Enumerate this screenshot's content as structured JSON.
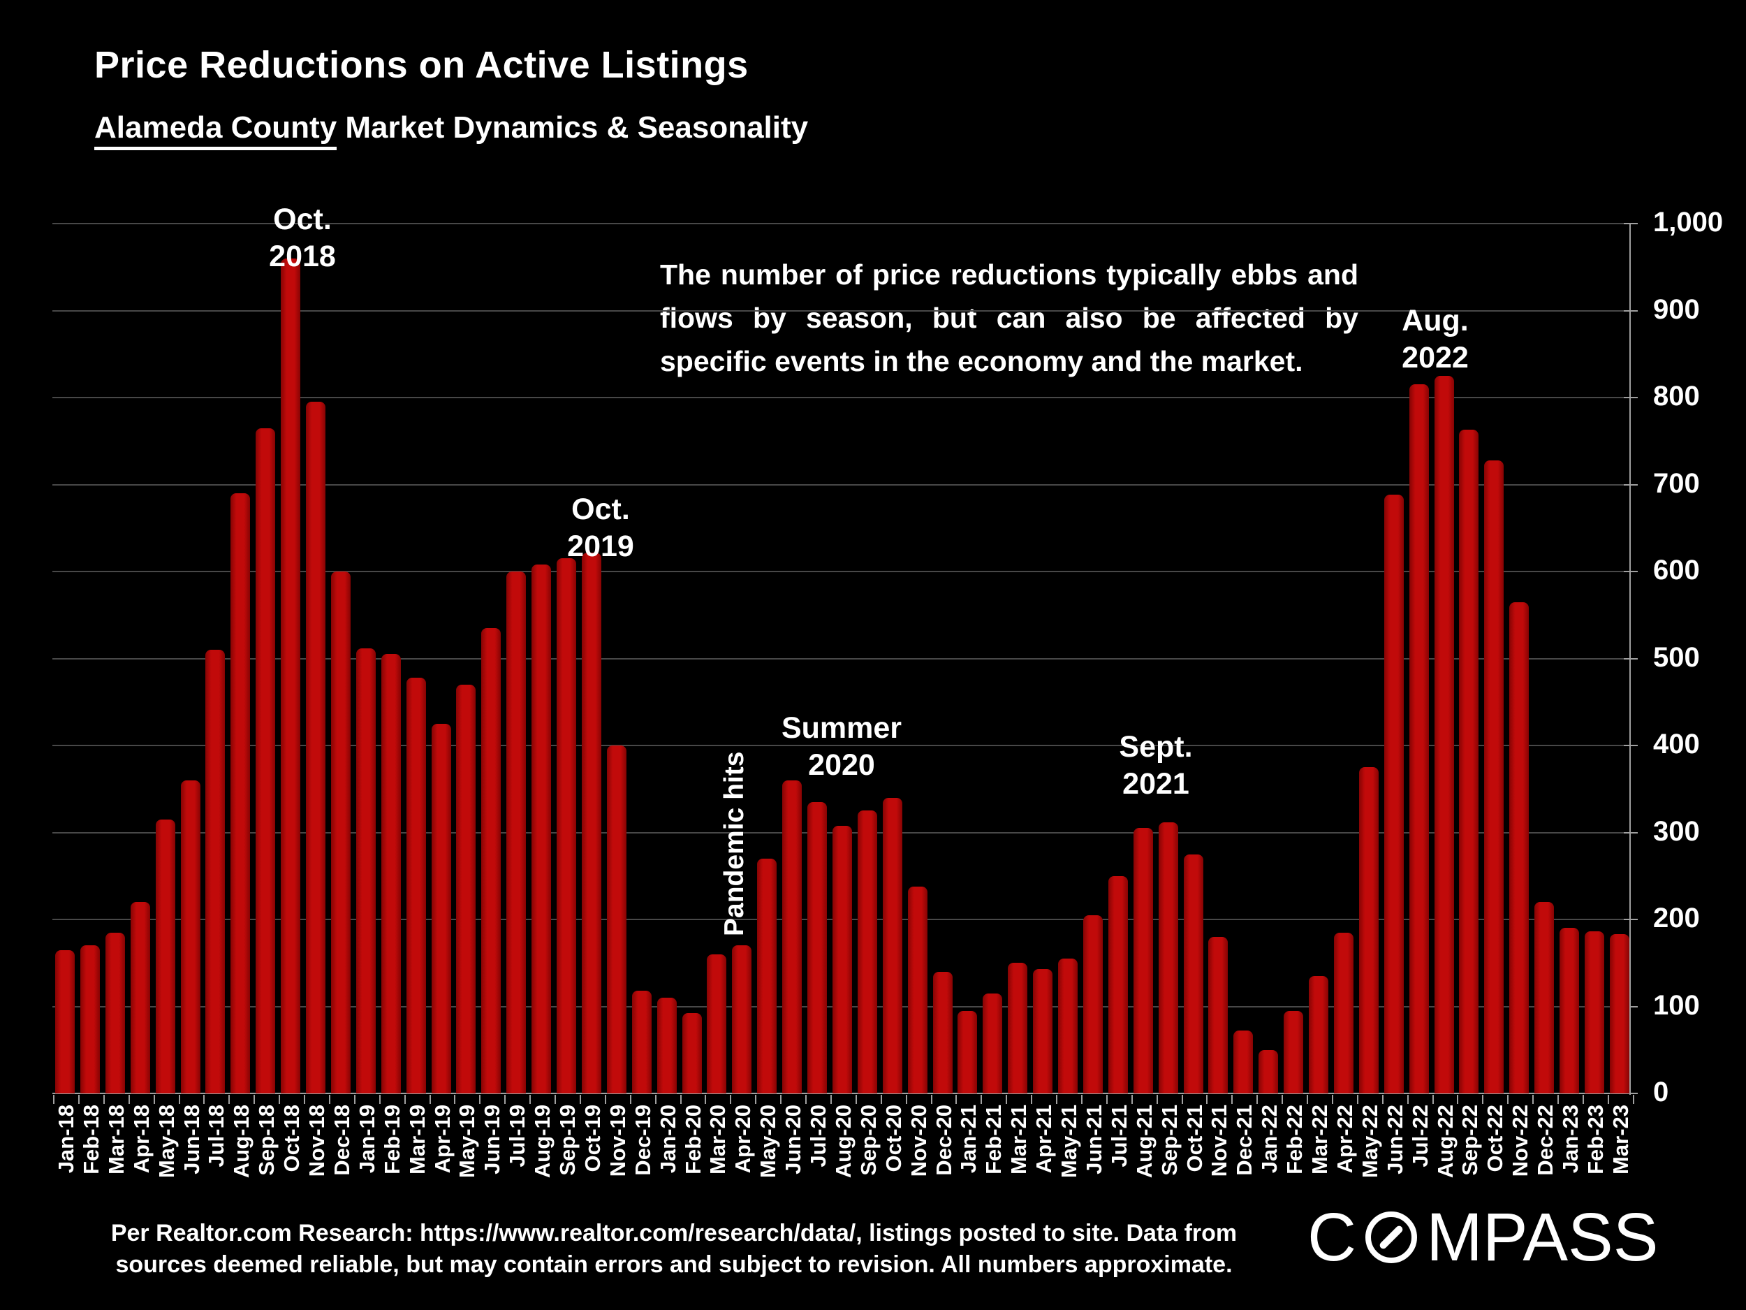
{
  "header": {
    "title": "Price Reductions on Active Listings",
    "subtitle_underlined": "Alameda County",
    "subtitle_rest": " Market Dynamics & Seasonality"
  },
  "annotation": {
    "paragraph": "The number of price reductions typically ebbs and flows by season, but can also be affected by specific events in the economy and the market.",
    "pandemic_label": "Pandemic hits"
  },
  "callouts": {
    "oct2018": "Oct.\n2018",
    "oct2019": "Oct.\n2019",
    "summer2020": "Summer\n2020",
    "sept2021": "Sept.\n2021",
    "aug2022": "Aug.\n2022"
  },
  "footer": {
    "line1": "Per Realtor.com Research:  https://www.realtor.com/research/data/, listings posted to site. Data from",
    "line2": "sources deemed reliable, but may contain errors and subject to revision. All numbers approximate."
  },
  "logo": {
    "part1": "C",
    "part2": "MPASS",
    "o_icon": "compass-needle-o"
  },
  "colors": {
    "background": "#000000",
    "bar_main": "#c10a0a",
    "bar_edge": "#860404",
    "gridline": "#484848",
    "axis": "#a0a0a0",
    "text": "#ffffff"
  },
  "chart_data": {
    "type": "bar",
    "title": "Price Reductions on Active Listings",
    "xlabel": "",
    "ylabel": "",
    "ylim": [
      0,
      1000
    ],
    "grid": true,
    "legend": "none",
    "yaxis_side": "right",
    "ytick_values": [
      0,
      100,
      200,
      300,
      400,
      500,
      600,
      700,
      800,
      900,
      1000
    ],
    "ytick_labels": [
      "0",
      "100",
      "200",
      "300",
      "400",
      "500",
      "600",
      "700",
      "800",
      "900",
      "1,000"
    ],
    "categories": [
      "Jan-18",
      "Feb-18",
      "Mar-18",
      "Apr-18",
      "May-18",
      "Jun-18",
      "Jul-18",
      "Aug-18",
      "Sep-18",
      "Oct-18",
      "Nov-18",
      "Dec-18",
      "Jan-19",
      "Feb-19",
      "Mar-19",
      "Apr-19",
      "May-19",
      "Jun-19",
      "Jul-19",
      "Aug-19",
      "Sep-19",
      "Oct-19",
      "Nov-19",
      "Dec-19",
      "Jan-20",
      "Feb-20",
      "Mar-20",
      "Apr-20",
      "May-20",
      "Jun-20",
      "Jul-20",
      "Aug-20",
      "Sep-20",
      "Oct-20",
      "Nov-20",
      "Dec-20",
      "Jan-21",
      "Feb-21",
      "Mar-21",
      "Apr-21",
      "May-21",
      "Jun-21",
      "Jul-21",
      "Aug-21",
      "Sep-21",
      "Oct-21",
      "Nov-21",
      "Dec-21",
      "Jan-22",
      "Feb-22",
      "Mar-22",
      "Apr-22",
      "May-22",
      "Jun-22",
      "Jul-22",
      "Aug-22",
      "Sep-22",
      "Oct-22",
      "Nov-22",
      "Dec-22",
      "Jan-23",
      "Feb-23",
      "Mar-23"
    ],
    "values": [
      165,
      170,
      185,
      220,
      315,
      360,
      510,
      690,
      765,
      960,
      795,
      600,
      512,
      505,
      478,
      425,
      470,
      535,
      600,
      608,
      615,
      622,
      400,
      118,
      110,
      92,
      160,
      170,
      270,
      360,
      335,
      308,
      325,
      340,
      238,
      140,
      95,
      115,
      150,
      143,
      155,
      205,
      250,
      305,
      312,
      275,
      180,
      72,
      50,
      95,
      135,
      185,
      375,
      688,
      815,
      825,
      763,
      728,
      565,
      220,
      190,
      186,
      183
    ],
    "annotations": [
      {
        "label": "Oct. 2018",
        "category": "Oct-18"
      },
      {
        "label": "Oct. 2019",
        "category": "Oct-19"
      },
      {
        "label": "Pandemic hits",
        "category": "Apr-20"
      },
      {
        "label": "Summer 2020",
        "category": "Jun-20"
      },
      {
        "label": "Sept. 2021",
        "category": "Sep-21"
      },
      {
        "label": "Aug. 2022",
        "category": "Aug-22"
      }
    ]
  }
}
